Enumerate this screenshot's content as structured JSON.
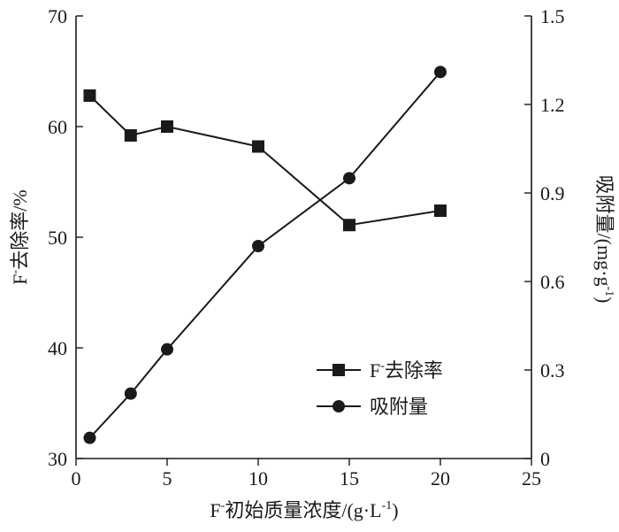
{
  "chart_data": {
    "type": "line",
    "x_axis": {
      "label": "F",
      "label_sup": "-",
      "label_rest": "初始质量浓度/(g·L",
      "label_sup2": "-1",
      "label_end": ")",
      "range": [
        0,
        25
      ],
      "ticks": [
        0,
        5,
        10,
        15,
        20,
        25
      ]
    },
    "y_left": {
      "label": "F",
      "label_sup": "-",
      "label_rest": "去除率/%",
      "range": [
        30,
        70
      ],
      "ticks": [
        30,
        40,
        50,
        60,
        70
      ]
    },
    "y_right": {
      "label": "吸附量/(mg·g",
      "label_sup": "-1",
      "label_end": ")",
      "range": [
        0,
        1.5
      ],
      "ticks": [
        "0",
        "0.3",
        "0.6",
        "0.9",
        "1.2",
        "1.5"
      ],
      "tick_values": [
        0,
        0.3,
        0.6,
        0.9,
        1.2,
        1.5
      ]
    },
    "series": [
      {
        "name": "F",
        "name_sup": "-",
        "name_rest": "去除率",
        "axis": "left",
        "marker": "square",
        "x": [
          0.75,
          3,
          5,
          10,
          15,
          20
        ],
        "y": [
          62.8,
          59.2,
          60.0,
          58.2,
          51.1,
          52.4
        ]
      },
      {
        "name": "吸附量",
        "axis": "right",
        "marker": "circle",
        "x": [
          0.75,
          3,
          5,
          10,
          15,
          20
        ],
        "y": [
          0.07,
          0.22,
          0.37,
          0.72,
          0.95,
          1.31
        ]
      }
    ],
    "legend_position": "lower-right",
    "grid": false,
    "colors": {
      "line": "#1a1a1a",
      "background": "#ffffff"
    }
  }
}
